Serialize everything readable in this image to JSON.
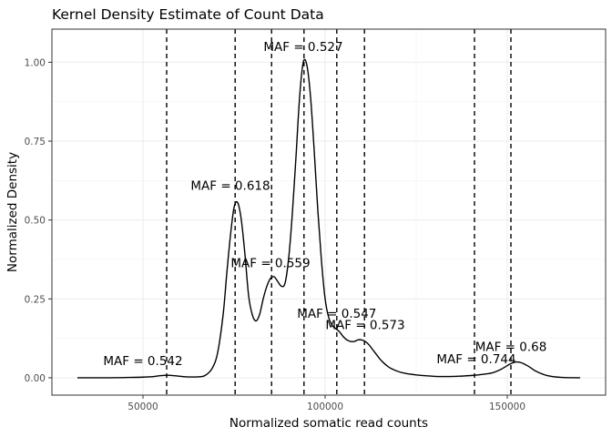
{
  "chart_data": {
    "type": "line",
    "title": "Kernel Density Estimate of Count Data",
    "xlabel": "Normalized somatic read counts",
    "ylabel": "Normalized Density",
    "xlim": [
      25000,
      177000
    ],
    "ylim": [
      -0.055,
      1.105
    ],
    "x_ticks": [
      50000,
      100000,
      150000
    ],
    "x_tick_labels": [
      "50000",
      "100000",
      "150000"
    ],
    "y_ticks": [
      0.0,
      0.25,
      0.5,
      0.75,
      1.0
    ],
    "y_tick_labels": [
      "0.00",
      "0.25",
      "0.50",
      "0.75",
      "1.00"
    ],
    "grid": true,
    "series": [
      {
        "color": "#000000",
        "x": [
          32000,
          40000,
          46000,
          50000,
          53000,
          55000,
          57000,
          59000,
          62000,
          65000,
          67000,
          69000,
          70500,
          72000,
          73000,
          74000,
          75000,
          76000,
          77000,
          78000,
          79000,
          80000,
          81000,
          82000,
          83000,
          84000,
          85000,
          86000,
          87000,
          88000,
          89000,
          90000,
          91000,
          92000,
          93000,
          94000,
          95000,
          96000,
          97000,
          98000,
          99000,
          100000,
          101000,
          102000,
          103000,
          104000,
          105000,
          106000,
          107000,
          108000,
          109000,
          110000,
          111000,
          112000,
          113000,
          114000,
          115000,
          116000,
          117000,
          118000,
          120000,
          122000,
          125000,
          128000,
          131000,
          134000,
          137000,
          140000,
          142000,
          144000,
          146000,
          148000,
          149500,
          151000,
          152500,
          154000,
          156000,
          158000,
          161000,
          165000,
          170000
        ],
        "y": [
          0.0,
          0.0,
          0.001,
          0.002,
          0.004,
          0.007,
          0.008,
          0.006,
          0.003,
          0.003,
          0.007,
          0.03,
          0.08,
          0.2,
          0.33,
          0.45,
          0.54,
          0.555,
          0.5,
          0.39,
          0.26,
          0.2,
          0.18,
          0.2,
          0.25,
          0.29,
          0.315,
          0.32,
          0.305,
          0.29,
          0.3,
          0.38,
          0.52,
          0.7,
          0.89,
          1.0,
          0.99,
          0.89,
          0.72,
          0.53,
          0.37,
          0.25,
          0.19,
          0.165,
          0.155,
          0.145,
          0.13,
          0.12,
          0.115,
          0.115,
          0.12,
          0.12,
          0.115,
          0.105,
          0.09,
          0.075,
          0.06,
          0.048,
          0.038,
          0.03,
          0.02,
          0.014,
          0.009,
          0.006,
          0.004,
          0.004,
          0.005,
          0.007,
          0.009,
          0.012,
          0.016,
          0.025,
          0.035,
          0.045,
          0.05,
          0.047,
          0.035,
          0.02,
          0.007,
          0.001,
          0.0
        ]
      }
    ],
    "vlines": [
      {
        "x": 56500,
        "label": "MAF = 0.542",
        "label_x": 50000,
        "label_y": 0.055
      },
      {
        "x": 75300,
        "label": "MAF = 0.618",
        "label_x": 74000,
        "label_y": 0.61
      },
      {
        "x": 85300,
        "label": "MAF = 0.559",
        "label_x": 85000,
        "label_y": 0.365
      },
      {
        "x": 94200,
        "label": "MAF = 0.527",
        "label_x": 94000,
        "label_y": 1.05
      },
      {
        "x": 103200,
        "label": "MAF = 0.547",
        "label_x": 103200,
        "label_y": 0.205
      },
      {
        "x": 110800,
        "label": "MAF = 0.573",
        "label_x": 111000,
        "label_y": 0.168
      },
      {
        "x": 141000,
        "label": "MAF = 0.744",
        "label_x": 141500,
        "label_y": 0.06
      },
      {
        "x": 151000,
        "label": "MAF = 0.68",
        "label_x": 151000,
        "label_y": 0.1
      }
    ],
    "line_style": {
      "vline_dash": true
    }
  }
}
